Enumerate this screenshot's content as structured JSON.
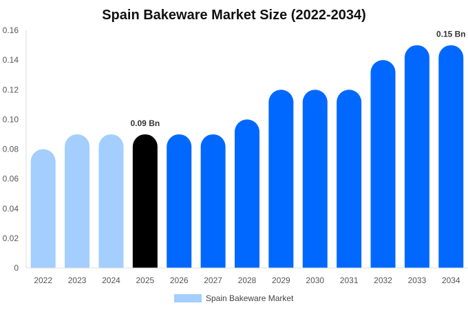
{
  "chart_data": {
    "type": "bar",
    "title": "Spain Bakeware Market Size (2022-2034)",
    "categories": [
      "2022",
      "2023",
      "2024",
      "2025",
      "2026",
      "2027",
      "2028",
      "2029",
      "2030",
      "2031",
      "2032",
      "2033",
      "2034"
    ],
    "series": [
      {
        "name": "Spain Bakeware Market",
        "values": [
          0.08,
          0.09,
          0.09,
          0.09,
          0.09,
          0.09,
          0.1,
          0.12,
          0.12,
          0.12,
          0.14,
          0.15,
          0.15
        ]
      }
    ],
    "ylim": [
      0,
      0.16
    ],
    "yticks": [
      0,
      0.02,
      0.04,
      0.06,
      0.08,
      0.1,
      0.12,
      0.14,
      0.16
    ],
    "ytick_labels": [
      "0",
      "0.02",
      "0.04",
      "0.06",
      "0.08",
      "0.10",
      "0.12",
      "0.14",
      "0.16"
    ],
    "data_labels": [
      {
        "category": "2025",
        "text": "0.09 Bn"
      },
      {
        "category": "2034",
        "text": "0.15 Bn"
      }
    ],
    "bar_colors": [
      "#a3cefe",
      "#a3cefe",
      "#a3cefe",
      "#000000",
      "#0068ff",
      "#0068ff",
      "#0068ff",
      "#0068ff",
      "#0068ff",
      "#0068ff",
      "#0068ff",
      "#0068ff",
      "#0068ff"
    ],
    "legend": {
      "label": "Spain Bakeware Market",
      "color": "#a3cefe",
      "position": "bottom"
    },
    "grid": false
  }
}
